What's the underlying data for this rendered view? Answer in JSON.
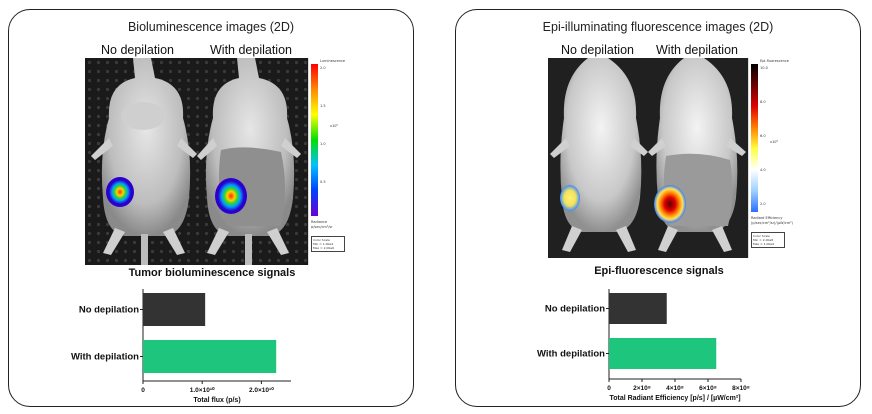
{
  "left": {
    "title": "Bioluminescence images (2D)",
    "labels": [
      "No depilation",
      "With depilation"
    ],
    "colorbar": {
      "title": "Luminescence",
      "ticks": [
        "2.0",
        "1.5",
        "1.0",
        "0.5"
      ],
      "exponent": "x10⁶",
      "units": [
        "Radiance",
        "p/sec/cm²/sr"
      ],
      "scale_lines": [
        "Color Scale",
        "Min = 1.00e4",
        "Max = 2.00e6"
      ]
    },
    "chart_title": "Tumor bioluminescence signals"
  },
  "right": {
    "title": "Epi-illuminating fluorescence images (2D)",
    "labels": [
      "No depilation",
      "With depilation"
    ],
    "colorbar": {
      "title": "Epi-fluorescence",
      "ticks": [
        "10.0",
        "8.0",
        "6.0",
        "4.0",
        "2.0"
      ],
      "exponent": "x10⁸",
      "units": [
        "Radiant Efficiency",
        "(p/sec/cm²/sr)/(µW/cm²)"
      ],
      "scale_lines": [
        "Color Scale",
        "Min = 2.00e8",
        "Max = 1.00e9"
      ]
    },
    "chart_title": "Epi-fluorescence signals"
  },
  "chart_data": [
    {
      "type": "bar",
      "orientation": "horizontal",
      "title": "Tumor bioluminescence signals",
      "categories": [
        "No depilation",
        "With depilation"
      ],
      "values": [
        10500000000,
        22500000000
      ],
      "colors": [
        "#333333",
        "#1dc57d"
      ],
      "xlabel": "Total flux (p/s)",
      "xlim": [
        0,
        25000000000
      ],
      "xticks": [
        0,
        10000000000,
        20000000000
      ],
      "xtick_labels": [
        "0",
        "1.0×10¹⁰",
        "2.0×10¹⁰"
      ]
    },
    {
      "type": "bar",
      "orientation": "horizontal",
      "title": "Epi-fluorescence signals",
      "categories": [
        "No depilation",
        "With depilation"
      ],
      "values": [
        350000000,
        650000000
      ],
      "colors": [
        "#333333",
        "#1dc57d"
      ],
      "xlabel": "Total Radiant Efficiency [p/s] / [µW/cm²]",
      "xlim": [
        0,
        800000000
      ],
      "xticks": [
        0,
        200000000,
        400000000,
        600000000,
        800000000
      ],
      "xtick_labels": [
        "0",
        "2×10⁸",
        "4×10⁸",
        "6×10⁸",
        "8×10⁸"
      ]
    }
  ]
}
